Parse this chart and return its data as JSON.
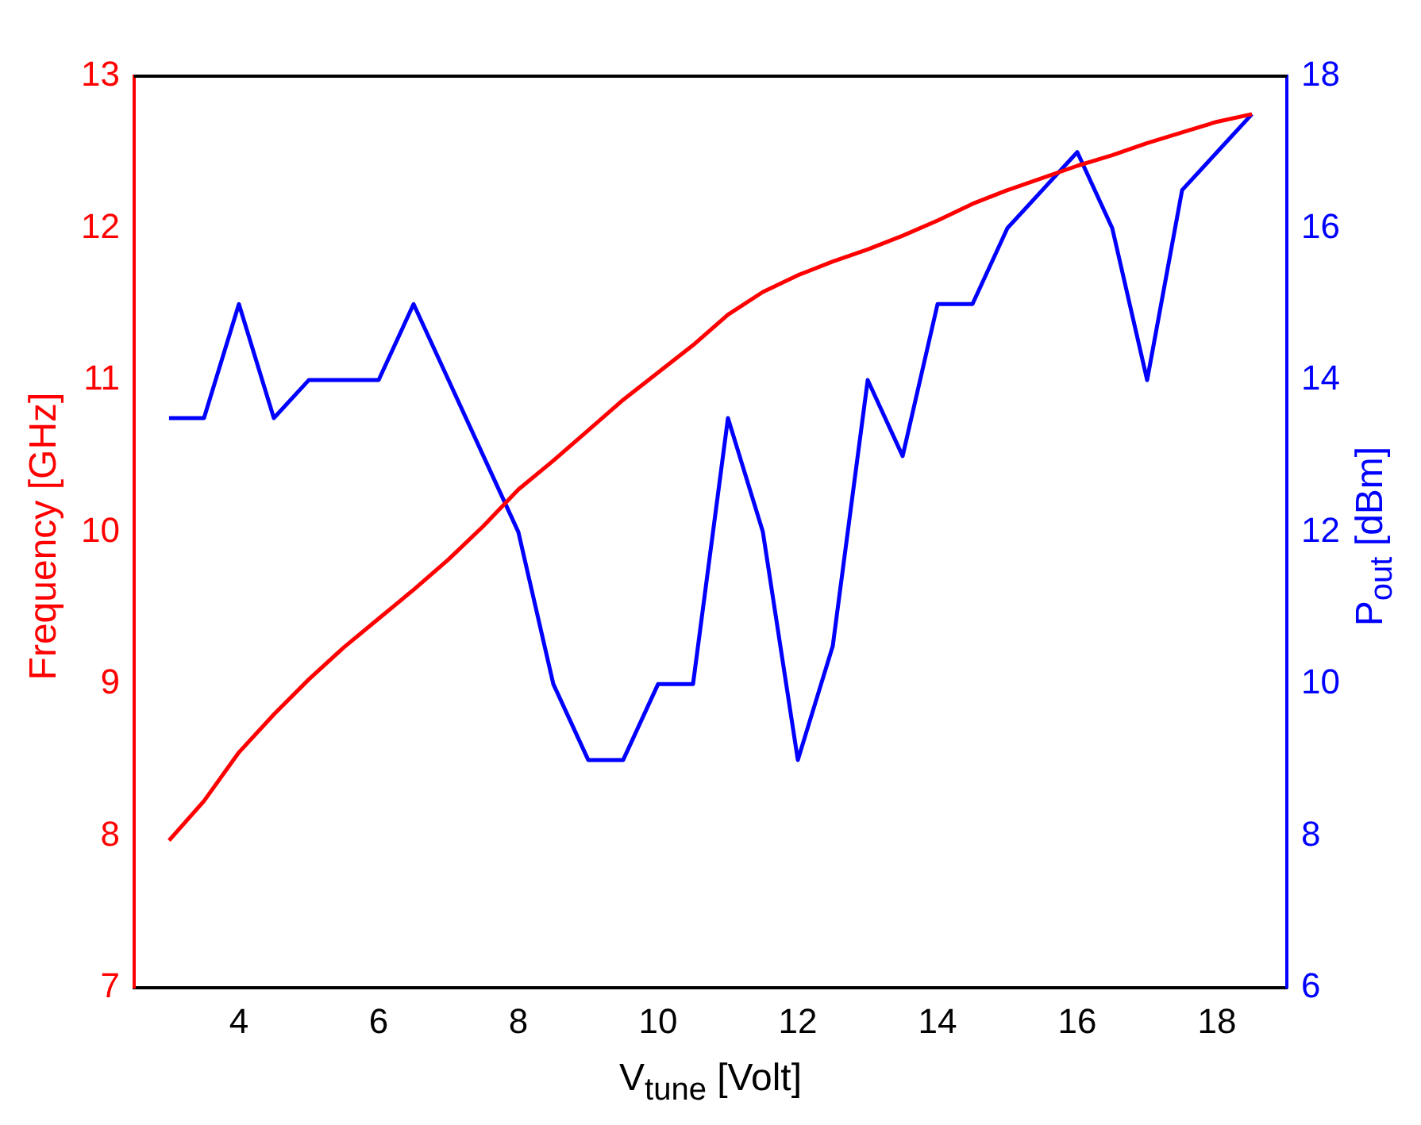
{
  "chart_data": {
    "type": "line",
    "xlabel": "V$_{tune}$ [Volt]",
    "ylabel": "Frequency [GHz]",
    "y2label": "P$_{out}$ [dBm]",
    "x": [
      3,
      3.5,
      4,
      4.5,
      5,
      5.5,
      6,
      6.5,
      7,
      7.5,
      8,
      8.5,
      9,
      9.5,
      10,
      10.5,
      11,
      11.5,
      12,
      12.5,
      13,
      13.5,
      14,
      14.5,
      15,
      15.5,
      16,
      16.5,
      17,
      17.5,
      18,
      18.5
    ],
    "series": [
      {
        "color": "#ff0000",
        "values": [
          7.97,
          8.23,
          8.55,
          8.8,
          9.03,
          9.24,
          9.43,
          9.62,
          9.82,
          10.04,
          10.28,
          10.47,
          10.67,
          10.87,
          11.05,
          11.23,
          11.43,
          11.58,
          11.69,
          11.78,
          11.86,
          11.95,
          12.05,
          12.16,
          12.25,
          12.33,
          12.41,
          12.48,
          12.56,
          12.63,
          12.7,
          12.75
        ]
      },
      {
        "color": "#0000ff",
        "axis": "y2",
        "values": [
          13.5,
          13.5,
          15,
          13.5,
          14,
          14,
          14,
          15,
          14,
          13,
          12,
          10,
          9,
          9,
          10,
          10,
          13.5,
          12,
          9,
          10.5,
          14,
          13,
          15,
          15,
          16,
          16.5,
          17,
          16,
          14,
          16.5,
          17,
          17.5
        ]
      }
    ],
    "xlim": [
      2.5,
      19
    ],
    "xticks": [
      4,
      6,
      8,
      10,
      12,
      14,
      16,
      18
    ],
    "ylim": [
      7,
      13
    ],
    "yticks": [
      7,
      8,
      9,
      10,
      11,
      12,
      13
    ],
    "y2lim": [
      6,
      18
    ],
    "y2ticks": [
      6,
      8,
      10,
      12,
      14,
      16,
      18
    ],
    "grid": false,
    "legend": false,
    "marker": "none",
    "line_style": "solid"
  }
}
